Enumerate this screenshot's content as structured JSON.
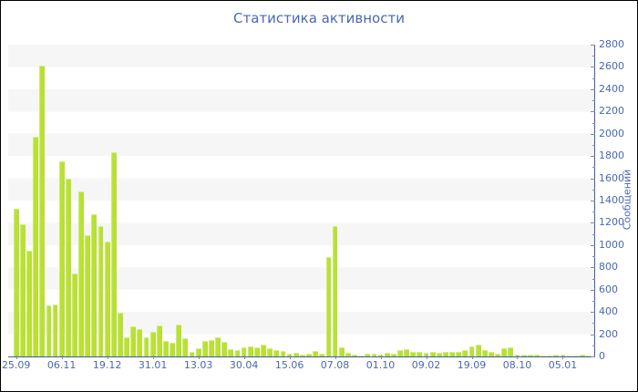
{
  "title": "Статистика активности",
  "colors": {
    "bar": "#b9e034",
    "bar_highlight": "#d7ef86",
    "axis_line": "#3d5ca8",
    "tick_mark": "#7f8aa8",
    "label_text": "#4a68b0",
    "stripe": "#f6f6f7",
    "background": "#ffffff",
    "border": "#000000"
  },
  "chart_data": {
    "type": "bar",
    "title": "Статистика активности",
    "xlabel": "",
    "ylabel": "Сообщений",
    "y_axis_side": "right",
    "ylim": [
      0,
      2800
    ],
    "ytick_step": 200,
    "y_minor_step": 100,
    "yticks": [
      0,
      200,
      400,
      600,
      800,
      1000,
      1200,
      1400,
      1600,
      1800,
      2000,
      2200,
      2400,
      2600,
      2800
    ],
    "grid": "horizontal-stripes",
    "legend": "none",
    "xtick_labels": [
      "25.09",
      "06.11",
      "19.12",
      "31.01",
      "13.03",
      "30.04",
      "15.06",
      "07.08",
      "01.10",
      "09.02",
      "19.09",
      "08.10",
      "05.01"
    ],
    "xtick_every_n_bars": 7,
    "values": [
      1330,
      1185,
      950,
      1975,
      2615,
      455,
      465,
      1750,
      1600,
      745,
      1480,
      1090,
      1280,
      1170,
      1030,
      1830,
      390,
      170,
      270,
      245,
      175,
      225,
      280,
      140,
      120,
      285,
      165,
      40,
      70,
      140,
      150,
      170,
      135,
      65,
      55,
      80,
      90,
      85,
      105,
      75,
      60,
      50,
      25,
      30,
      20,
      25,
      50,
      25,
      890,
      1170,
      80,
      35,
      20,
      12,
      22,
      27,
      19,
      30,
      27,
      60,
      65,
      45,
      40,
      35,
      40,
      35,
      37,
      40,
      42,
      55,
      88,
      105,
      55,
      44,
      25,
      70,
      80,
      20,
      15,
      18,
      15,
      12,
      10,
      15,
      18,
      12,
      10,
      14,
      10
    ]
  }
}
